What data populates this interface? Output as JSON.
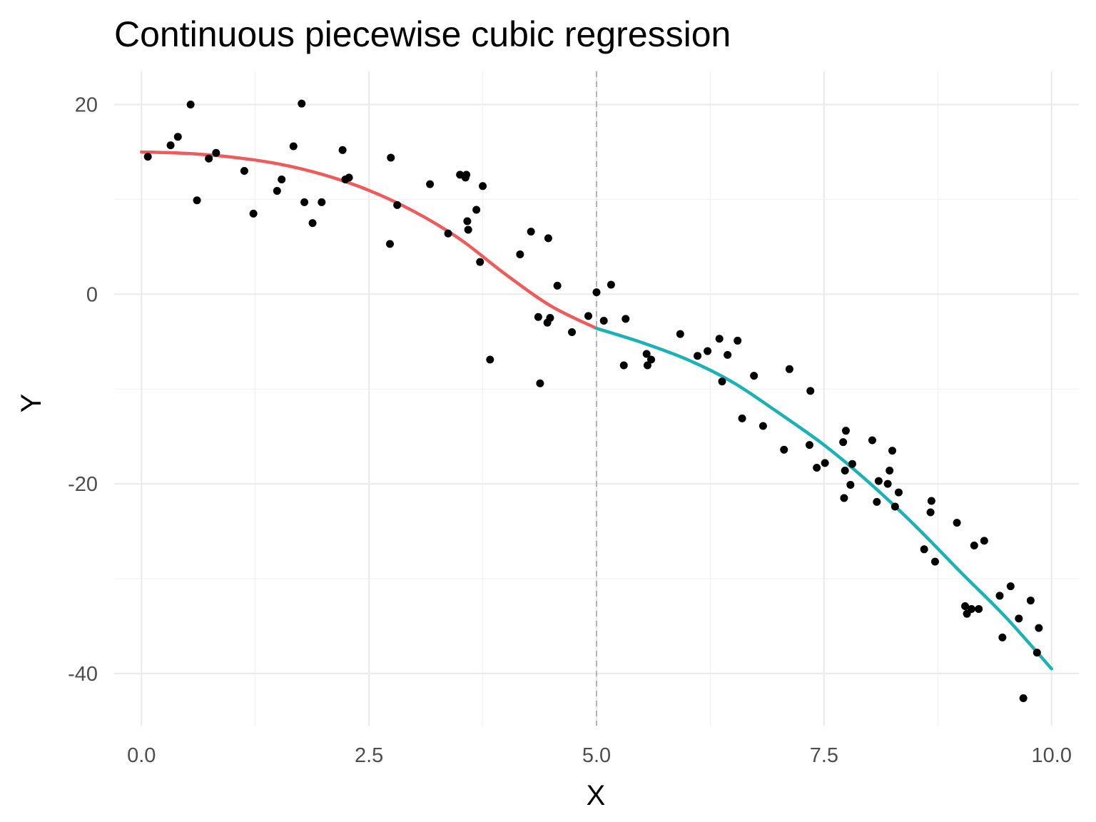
{
  "chart_data": {
    "type": "scatter",
    "title": "Continuous piecewise cubic regression",
    "xlabel": "X",
    "ylabel": "Y",
    "xlim": [
      -0.3,
      10.3
    ],
    "ylim": [
      -45.5,
      23.5
    ],
    "x_ticks": [
      0,
      2.5,
      5,
      7.5,
      10
    ],
    "x_tick_labels": [
      "0.0",
      "2.5",
      "5.0",
      "7.5",
      "10.0"
    ],
    "x_minor_ticks": [
      1.25,
      3.75,
      6.25,
      8.75
    ],
    "y_ticks": [
      20,
      0,
      -20,
      -40
    ],
    "y_tick_labels": [
      "20",
      "0",
      "-20",
      "-40"
    ],
    "y_minor_ticks": [
      10,
      -10,
      -30
    ],
    "grid": true,
    "knot": 5.0,
    "knot_line_color": "#b3b3b3",
    "point_color": "#000000",
    "points": [
      [
        0.07,
        14.5
      ],
      [
        0.32,
        15.7
      ],
      [
        0.4,
        16.6
      ],
      [
        0.54,
        20.0
      ],
      [
        0.61,
        9.9
      ],
      [
        0.74,
        14.3
      ],
      [
        0.82,
        14.9
      ],
      [
        1.13,
        13.0
      ],
      [
        1.23,
        8.5
      ],
      [
        1.49,
        10.9
      ],
      [
        1.54,
        12.1
      ],
      [
        1.67,
        15.6
      ],
      [
        1.76,
        20.1
      ],
      [
        1.79,
        9.7
      ],
      [
        1.88,
        7.5
      ],
      [
        1.98,
        9.7
      ],
      [
        2.21,
        15.2
      ],
      [
        2.24,
        12.1
      ],
      [
        2.28,
        12.3
      ],
      [
        2.73,
        5.3
      ],
      [
        2.74,
        14.4
      ],
      [
        2.81,
        9.4
      ],
      [
        3.17,
        11.6
      ],
      [
        3.37,
        6.4
      ],
      [
        3.5,
        12.6
      ],
      [
        3.56,
        12.3
      ],
      [
        3.57,
        12.6
      ],
      [
        3.58,
        7.7
      ],
      [
        3.59,
        6.8
      ],
      [
        3.68,
        8.9
      ],
      [
        3.72,
        3.4
      ],
      [
        3.75,
        11.4
      ],
      [
        3.83,
        -6.9
      ],
      [
        4.16,
        4.2
      ],
      [
        4.28,
        6.6
      ],
      [
        4.36,
        -2.4
      ],
      [
        4.38,
        -9.4
      ],
      [
        4.46,
        -3.0
      ],
      [
        4.47,
        5.9
      ],
      [
        4.49,
        -2.5
      ],
      [
        4.57,
        0.9
      ],
      [
        4.73,
        -4.0
      ],
      [
        4.91,
        -2.3
      ],
      [
        5.0,
        0.2
      ],
      [
        5.08,
        -2.8
      ],
      [
        5.16,
        1.0
      ],
      [
        5.3,
        -7.5
      ],
      [
        5.32,
        -2.6
      ],
      [
        5.55,
        -6.3
      ],
      [
        5.56,
        -7.5
      ],
      [
        5.6,
        -6.9
      ],
      [
        5.92,
        -4.2
      ],
      [
        6.11,
        -6.5
      ],
      [
        6.22,
        -6.0
      ],
      [
        6.35,
        -4.7
      ],
      [
        6.38,
        -9.2
      ],
      [
        6.44,
        -6.4
      ],
      [
        6.55,
        -4.9
      ],
      [
        6.6,
        -13.1
      ],
      [
        6.73,
        -8.6
      ],
      [
        6.83,
        -13.9
      ],
      [
        7.06,
        -16.4
      ],
      [
        7.12,
        -7.9
      ],
      [
        7.34,
        -15.9
      ],
      [
        7.35,
        -10.2
      ],
      [
        7.42,
        -18.3
      ],
      [
        7.51,
        -17.8
      ],
      [
        7.71,
        -15.6
      ],
      [
        7.72,
        -21.5
      ],
      [
        7.73,
        -18.6
      ],
      [
        7.74,
        -14.4
      ],
      [
        7.79,
        -20.1
      ],
      [
        7.81,
        -17.9
      ],
      [
        8.03,
        -15.4
      ],
      [
        8.08,
        -21.9
      ],
      [
        8.1,
        -19.7
      ],
      [
        8.2,
        -20.0
      ],
      [
        8.22,
        -18.6
      ],
      [
        8.25,
        -16.5
      ],
      [
        8.28,
        -22.4
      ],
      [
        8.32,
        -20.9
      ],
      [
        8.6,
        -26.9
      ],
      [
        8.67,
        -23.0
      ],
      [
        8.68,
        -21.8
      ],
      [
        8.72,
        -28.2
      ],
      [
        8.96,
        -24.1
      ],
      [
        9.05,
        -32.9
      ],
      [
        9.07,
        -33.7
      ],
      [
        9.12,
        -33.2
      ],
      [
        9.15,
        -26.5
      ],
      [
        9.2,
        -33.2
      ],
      [
        9.26,
        -26.0
      ],
      [
        9.43,
        -31.8
      ],
      [
        9.46,
        -36.2
      ],
      [
        9.55,
        -30.8
      ],
      [
        9.64,
        -34.2
      ],
      [
        9.69,
        -42.6
      ],
      [
        9.77,
        -32.3
      ],
      [
        9.84,
        -37.8
      ],
      [
        9.86,
        -35.2
      ]
    ],
    "series": [
      {
        "color": "#ef5a5a",
        "x": [
          0,
          0.5,
          1,
          1.5,
          2,
          2.5,
          3,
          3.5,
          4,
          4.5,
          5
        ],
        "y": [
          15.0,
          14.85,
          14.45,
          13.75,
          12.6,
          10.95,
          8.7,
          5.8,
          2.1,
          -1.25,
          -3.6
        ]
      },
      {
        "color": "#1bb2b5",
        "x": [
          5,
          5.5,
          6,
          6.5,
          7,
          7.5,
          8,
          8.5,
          9,
          9.5,
          10
        ],
        "y": [
          -3.6,
          -5.1,
          -6.9,
          -9.3,
          -12.5,
          -15.9,
          -19.9,
          -24.4,
          -29.3,
          -34.1,
          -39.5
        ]
      }
    ]
  }
}
